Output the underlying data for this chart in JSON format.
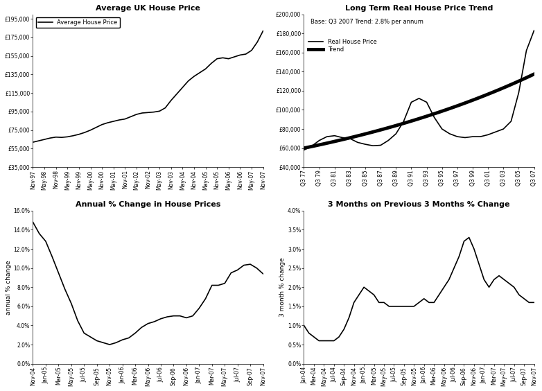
{
  "title_tl": "Average UK House Price",
  "title_tr": "Long Term Real House Price Trend",
  "title_bl": "Annual % Change in House Prices",
  "title_br": "3 Months on Previous 3 Months % Change",
  "ylabel_bl": "annual % change",
  "ylabel_br": "3 month % change",
  "legend_tr_note": "Base: Q3 2007 Trend: 2.8% per annum",
  "legend_tr_line1": "Real House Price",
  "legend_tr_line2": "Trend",
  "legend_tl": "Average House Price",
  "tl_xticks": [
    "Nov-97",
    "May-98",
    "Nov-98",
    "May-99",
    "Nov-99",
    "May-00",
    "Nov-00",
    "May-01",
    "Nov-01",
    "May-02",
    "Nov-02",
    "May-03",
    "Nov-03",
    "May-04",
    "Nov-04",
    "May-05",
    "Nov-05",
    "May-06",
    "Nov-06",
    "May-07",
    "Nov-07"
  ],
  "tl_yticks": [
    35000,
    55000,
    75000,
    95000,
    115000,
    135000,
    155000,
    175000,
    195000
  ],
  "tl_ylabels": [
    "£35,000",
    "£55,000",
    "£75,000",
    "£95,000",
    "£115,000",
    "£135,000",
    "£155,000",
    "£175,000",
    "£195,000"
  ],
  "tr_xticks_labels": [
    "Q3 77",
    "Q3 79",
    "Q3 81",
    "Q3 83",
    "Q3 85",
    "Q3 87",
    "Q3 89",
    "Q3 91",
    "Q3 93",
    "Q3 95",
    "Q3 97",
    "Q3 99",
    "Q3 01",
    "Q3 03",
    "Q3 05",
    "Q3 07"
  ],
  "tr_yticks": [
    40000,
    60000,
    80000,
    100000,
    120000,
    140000,
    160000,
    180000,
    200000
  ],
  "tr_ylabels": [
    "£40,000",
    "£60,000",
    "£80,000",
    "£100,000",
    "£120,000",
    "£140,000",
    "£160,000",
    "£180,000",
    "£200,000"
  ],
  "bl_yticks": [
    0.0,
    0.02,
    0.04,
    0.06,
    0.08,
    0.1,
    0.12,
    0.14,
    0.16
  ],
  "bl_ylabels": [
    "0.0%",
    "2.0%",
    "4.0%",
    "6.0%",
    "8.0%",
    "10.0%",
    "12.0%",
    "14.0%",
    "16.0%"
  ],
  "bl_xticks_labels": [
    "Nov-04",
    "Jan-05",
    "Mar-05",
    "May-05",
    "Jul-05",
    "Sep-05",
    "Nov-05",
    "Jan-06",
    "Mar-06",
    "May-06",
    "Jul-06",
    "Sep-06",
    "Nov-06",
    "Jan-07",
    "Mar-07",
    "May-07",
    "Jul-07",
    "Sep-07",
    "Nov-07"
  ],
  "br_yticks": [
    0.0,
    0.005,
    0.01,
    0.015,
    0.02,
    0.025,
    0.03,
    0.035,
    0.04
  ],
  "br_ylabels": [
    "0.0%",
    "0.5%",
    "1.0%",
    "1.5%",
    "2.0%",
    "2.5%",
    "3.0%",
    "3.5%",
    "4.0%"
  ],
  "br_xticks_labels": [
    "Jan-04",
    "Mar-04",
    "May-04",
    "Jul-04",
    "Sep-04",
    "Nov-04",
    "Jan-05",
    "Mar-05",
    "May-05",
    "Jul-05",
    "Sep-05",
    "Nov-05",
    "Jan-06",
    "Mar-06",
    "May-06",
    "Jul-06",
    "Sep-06",
    "Nov-06",
    "Jan-07",
    "Mar-07",
    "May-07",
    "Jul-07",
    "Sep-07",
    "Nov-07"
  ]
}
